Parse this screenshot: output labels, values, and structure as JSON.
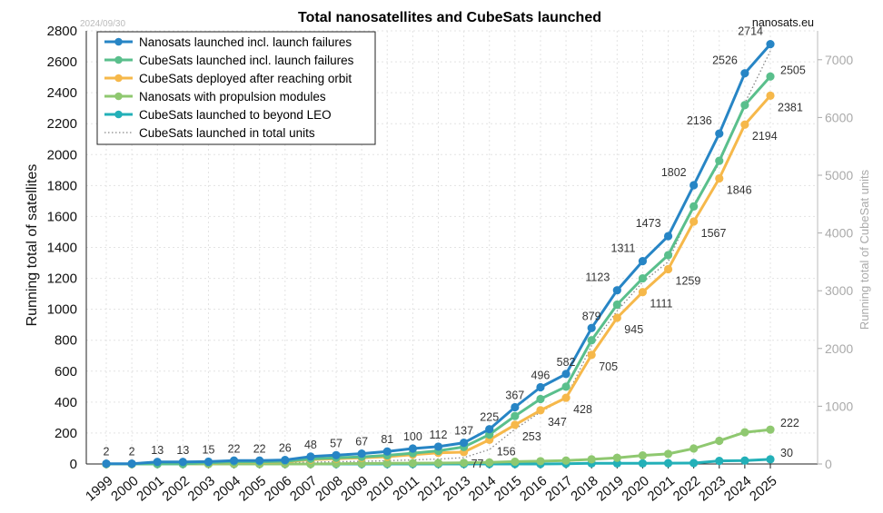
{
  "chart_data": {
    "type": "line",
    "title": "Total nanosatellites and CubeSats launched",
    "date_stamp": "2024/09/30",
    "source": "nanosats.eu",
    "ylabel": "Running total of satellites",
    "y2label": "Running total of CubeSat units",
    "ylim": [
      0,
      2800
    ],
    "y2lim": [
      0,
      7500
    ],
    "yticks": [
      0,
      200,
      400,
      600,
      800,
      1000,
      1200,
      1400,
      1600,
      1800,
      2000,
      2200,
      2400,
      2600,
      2800
    ],
    "y2ticks": [
      0,
      1000,
      2000,
      3000,
      4000,
      5000,
      6000,
      7000
    ],
    "grid": true,
    "legend_position": "top-left",
    "x": [
      "1999",
      "2000",
      "2001",
      "2002",
      "2003",
      "2004",
      "2005",
      "2006",
      "2007",
      "2008",
      "2009",
      "2010",
      "2011",
      "2012",
      "2013",
      "2014",
      "2015",
      "2016",
      "2017",
      "2018",
      "2019",
      "2020",
      "2021",
      "2022",
      "2023",
      "2024",
      "2025"
    ],
    "series": [
      {
        "name": "Nanosats launched incl. launch failures",
        "color": "#2785c5",
        "values": [
          2,
          2,
          13,
          13,
          15,
          22,
          22,
          26,
          48,
          57,
          67,
          81,
          100,
          112,
          137,
          225,
          367,
          496,
          582,
          879,
          1123,
          1311,
          1473,
          1802,
          2136,
          2526,
          2714
        ],
        "labels": [
          "2",
          "2",
          "13",
          "13",
          "15",
          "22",
          "22",
          "26",
          "48",
          "57",
          "67",
          "81",
          "100",
          "112",
          "137",
          "225",
          "367",
          "496",
          "582",
          "879",
          "1123",
          "1311",
          "1473",
          "1802",
          "2136",
          "2526",
          "2714"
        ]
      },
      {
        "name": "CubeSats launched incl. launch failures",
        "color": "#5abf8c",
        "values": [
          0,
          0,
          0,
          0,
          7,
          13,
          14,
          17,
          33,
          40,
          46,
          56,
          70,
          85,
          110,
          190,
          310,
          420,
          500,
          800,
          1030,
          1200,
          1350,
          1665,
          1960,
          2320,
          2505
        ],
        "labels": [
          null,
          null,
          null,
          null,
          null,
          null,
          null,
          null,
          null,
          null,
          null,
          null,
          null,
          null,
          null,
          null,
          null,
          null,
          null,
          null,
          null,
          null,
          null,
          null,
          null,
          null,
          "2505"
        ]
      },
      {
        "name": "CubeSats deployed after reaching orbit",
        "color": "#f6b84a",
        "values": [
          0,
          0,
          0,
          0,
          5,
          11,
          12,
          14,
          28,
          34,
          40,
          47,
          60,
          72,
          77,
          156,
          253,
          347,
          428,
          705,
          945,
          1111,
          1259,
          1567,
          1846,
          2194,
          2381
        ],
        "labels": [
          null,
          null,
          null,
          null,
          null,
          null,
          null,
          null,
          null,
          null,
          null,
          null,
          null,
          null,
          "77",
          "156",
          "253",
          "347",
          "428",
          "705",
          "945",
          "1111",
          "1259",
          "1567",
          "1846",
          "2194",
          "2381"
        ]
      },
      {
        "name": "Nanosats with propulsion modules",
        "color": "#8fc870",
        "values": [
          0,
          0,
          0,
          0,
          0,
          0,
          0,
          0,
          0,
          2,
          3,
          4,
          5,
          6,
          7,
          10,
          15,
          18,
          22,
          30,
          40,
          55,
          65,
          100,
          150,
          205,
          222
        ],
        "labels": [
          null,
          null,
          null,
          null,
          null,
          null,
          null,
          null,
          null,
          null,
          null,
          null,
          null,
          null,
          null,
          null,
          null,
          null,
          null,
          null,
          null,
          null,
          null,
          null,
          null,
          null,
          "222"
        ]
      },
      {
        "name": "CubeSats launched to beyond LEO",
        "color": "#23b0b8",
        "values": [
          0,
          0,
          0,
          0,
          0,
          0,
          0,
          0,
          0,
          0,
          0,
          0,
          0,
          0,
          0,
          0,
          0,
          0,
          2,
          4,
          4,
          4,
          5,
          6,
          20,
          22,
          30
        ],
        "labels": [
          null,
          null,
          null,
          null,
          null,
          null,
          null,
          null,
          null,
          null,
          null,
          null,
          null,
          null,
          null,
          null,
          null,
          null,
          null,
          null,
          null,
          null,
          null,
          null,
          null,
          null,
          "30"
        ]
      },
      {
        "name": "CubeSats launched in total units",
        "color": "#888888",
        "axis": "right",
        "dotted": true,
        "values": [
          0,
          0,
          0,
          0,
          7,
          13,
          14,
          17,
          33,
          40,
          46,
          56,
          70,
          85,
          110,
          250,
          600,
          900,
          1150,
          2050,
          2650,
          3150,
          3500,
          4500,
          5200,
          6250,
          7150
        ]
      }
    ]
  }
}
